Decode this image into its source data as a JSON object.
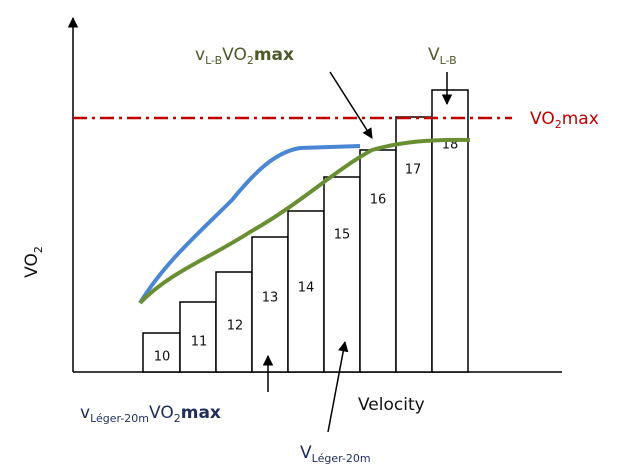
{
  "axes": {
    "x_label": "Velocity",
    "y_label": [
      "VO",
      "2"
    ]
  },
  "stages": [
    "10",
    "11",
    "12",
    "13",
    "14",
    "15",
    "16",
    "17",
    "18"
  ],
  "vo2max_label": [
    "VO",
    "2",
    "max"
  ],
  "annotations": {
    "v_lb_vo2max": [
      "v",
      "L-B",
      "VO",
      "2",
      "max"
    ],
    "v_lb": [
      "V",
      "L-B"
    ],
    "v_leger_vo2max": [
      "v",
      "Léger-20m",
      "VO",
      "2",
      "max"
    ],
    "v_leger": [
      "V",
      "Léger-20m"
    ]
  }
}
